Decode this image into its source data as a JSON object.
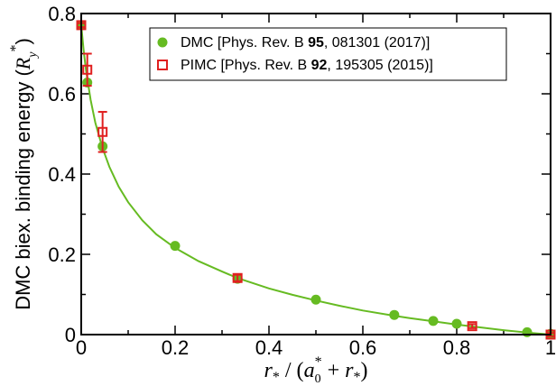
{
  "chart_data": {
    "type": "scatter",
    "xlabel": "r* / (a0* + r*)",
    "ylabel": "DMC biex. binding energy (Ry*)",
    "xlim": [
      0,
      1
    ],
    "ylim": [
      0,
      0.8
    ],
    "x_ticks": [
      "0",
      "0.2",
      "0.4",
      "0.6",
      "0.8",
      "1"
    ],
    "y_ticks": [
      "0",
      "0.2",
      "0.4",
      "0.6",
      "0.8"
    ],
    "x_tick_values": [
      0,
      0.2,
      0.4,
      0.6,
      0.8,
      1.0
    ],
    "y_tick_values": [
      0,
      0.2,
      0.4,
      0.6,
      0.8
    ],
    "legend_position": "top-right",
    "series": [
      {
        "name": "DMC [Phys. Rev. B 95, 081301 (2017)]",
        "name_parts": [
          "DMC [Phys. Rev. B ",
          "95",
          ", 081301 (2017)]"
        ],
        "marker": "filled-circle",
        "color": "#66bb22",
        "points": [
          {
            "x": 0.0,
            "y": 0.771
          },
          {
            "x": 0.0129,
            "y": 0.628
          },
          {
            "x": 0.0455,
            "y": 0.469
          },
          {
            "x": 0.2,
            "y": 0.221
          },
          {
            "x": 0.333,
            "y": 0.139
          },
          {
            "x": 0.5,
            "y": 0.087
          },
          {
            "x": 0.667,
            "y": 0.049
          },
          {
            "x": 0.75,
            "y": 0.034
          },
          {
            "x": 0.8,
            "y": 0.027
          },
          {
            "x": 0.95,
            "y": 0.006
          },
          {
            "x": 1.0,
            "y": 0.002
          }
        ]
      },
      {
        "name": "PIMC [Phys. Rev. B 92, 195305 (2015)]",
        "name_parts": [
          "PIMC [Phys. Rev. B ",
          "92",
          ", 195305 (2015)]"
        ],
        "marker": "open-square",
        "color": "#e02020",
        "points": [
          {
            "x": 0.0,
            "y": 0.771,
            "err": 0.005
          },
          {
            "x": 0.0129,
            "y": 0.66,
            "err": 0.04
          },
          {
            "x": 0.0455,
            "y": 0.505,
            "err": 0.05
          },
          {
            "x": 0.333,
            "y": 0.141,
            "err": 0.008
          },
          {
            "x": 0.833,
            "y": 0.021,
            "err": 0.005
          },
          {
            "x": 1.0,
            "y": 0.0,
            "err": 0.004
          }
        ]
      }
    ],
    "fit_curve": {
      "color": "#66bb22",
      "x": [
        0.0,
        0.005,
        0.01,
        0.02,
        0.03,
        0.045,
        0.06,
        0.08,
        0.1,
        0.13,
        0.16,
        0.2,
        0.25,
        0.3,
        0.333,
        0.4,
        0.45,
        0.5,
        0.55,
        0.6,
        0.667,
        0.7,
        0.75,
        0.8,
        0.85,
        0.9,
        0.95,
        1.0
      ],
      "y": [
        0.771,
        0.71,
        0.66,
        0.585,
        0.528,
        0.466,
        0.418,
        0.368,
        0.33,
        0.285,
        0.25,
        0.216,
        0.183,
        0.157,
        0.141,
        0.115,
        0.099,
        0.085,
        0.072,
        0.06,
        0.047,
        0.041,
        0.033,
        0.025,
        0.018,
        0.011,
        0.005,
        0.0
      ]
    }
  }
}
